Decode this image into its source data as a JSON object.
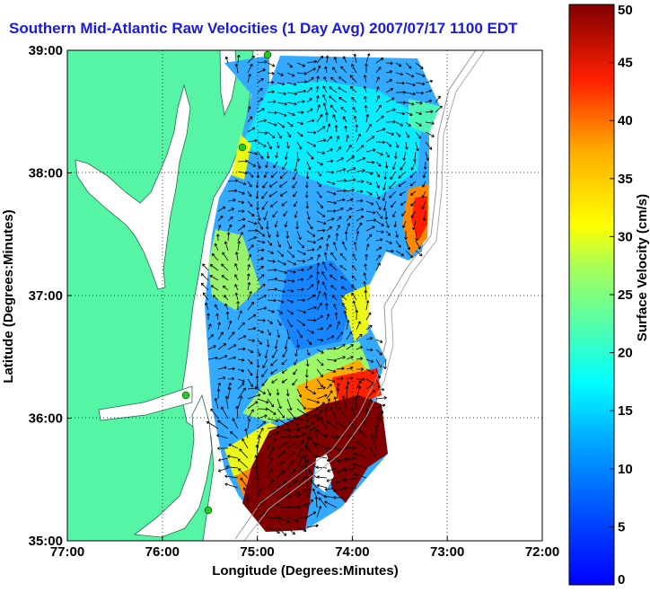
{
  "title": "Southern Mid-Atlantic Raw Velocities (1 Day Avg) 2007/07/17 1100 EDT",
  "chart_data": {
    "type": "heatmap",
    "title": "Southern Mid-Atlantic Raw Velocities (1 Day Avg) 2007/07/17 1100 EDT",
    "xlabel": "Longitude (Degrees:Minutes)",
    "ylabel": "Latitude (Degrees:Minutes)",
    "xlim": [
      -77,
      -72
    ],
    "ylim": [
      35,
      39
    ],
    "x_ticks": [
      "77:00",
      "76:00",
      "75:00",
      "74:00",
      "73:00",
      "72:00"
    ],
    "y_ticks": [
      "35:00",
      "36:00",
      "37:00",
      "38:00",
      "39:00"
    ],
    "grid": "dotted",
    "colorbar": {
      "label": "Surface Velocity (cm/s)",
      "range": [
        0,
        50
      ],
      "ticks": [
        "0",
        "5",
        "10",
        "15",
        "20",
        "25",
        "30",
        "35",
        "40",
        "45",
        "50"
      ],
      "colormap": "jet"
    }
  },
  "colors": {
    "land": "#55f5a5",
    "water": "#ffffff",
    "title": "#1a1adc",
    "vectors": "#000000",
    "station": "#22cc22"
  }
}
